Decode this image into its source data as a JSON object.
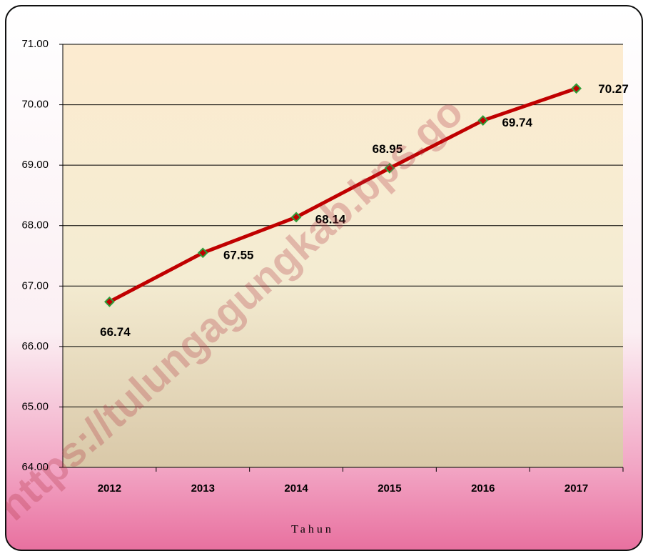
{
  "chart_data": {
    "type": "line",
    "x_label": "Tahun",
    "watermark": "https://tulungagungkab.bps.go",
    "categories": [
      "2012",
      "2013",
      "2014",
      "2015",
      "2016",
      "2017"
    ],
    "series": [
      {
        "color": "#c00000",
        "marker_color": "#2e9e3a",
        "values": [
          66.74,
          67.55,
          68.14,
          68.95,
          69.74,
          70.27
        ]
      }
    ],
    "ylim": [
      64,
      71
    ],
    "yticks": [
      {
        "value": 64,
        "label": "64.00"
      },
      {
        "value": 65,
        "label": "65.00"
      },
      {
        "value": 66,
        "label": "66.00"
      },
      {
        "value": 67,
        "label": "67.00"
      },
      {
        "value": 68,
        "label": "68.00"
      },
      {
        "value": 69,
        "label": "69.00"
      },
      {
        "value": 70,
        "label": "70.00"
      },
      {
        "value": 71,
        "label": "71.00"
      }
    ],
    "grid": true
  }
}
